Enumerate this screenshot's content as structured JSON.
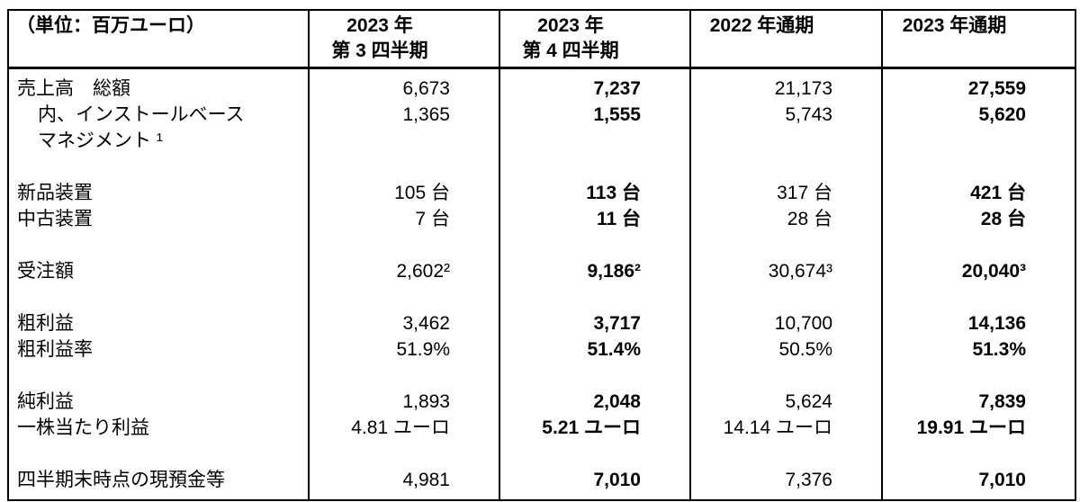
{
  "page": {
    "background_color": "#ffffff",
    "border_color": "#000000",
    "text_color": "#000000"
  },
  "table": {
    "unit_label": "（単位：百万ユーロ）",
    "columns": [
      {
        "id": "q3-2023",
        "label_line1": "2023 年",
        "label_line2": "第 3 四半期",
        "bold_values": false
      },
      {
        "id": "q4-2023",
        "label_line1": "2023 年",
        "label_line2": "第 4 四半期",
        "bold_values": true
      },
      {
        "id": "fy-2022",
        "label_line1": "2022 年通期",
        "label_line2": "",
        "bold_values": false
      },
      {
        "id": "fy-2023",
        "label_line1": "2023 年通期",
        "label_line2": "",
        "bold_values": true
      }
    ],
    "rows": [
      {
        "label": "売上高　総額",
        "indent": false,
        "spacer": false,
        "values": [
          "6,673",
          "7,237",
          "21,173",
          "27,559"
        ]
      },
      {
        "label": "内、インストールベース",
        "indent": true,
        "spacer": false,
        "values": [
          "1,365",
          "1,555",
          "5,743",
          "5,620"
        ]
      },
      {
        "label": "マネジメント ¹",
        "indent": true,
        "spacer": false,
        "values": [
          "",
          "",
          "",
          ""
        ]
      },
      {
        "label": "",
        "indent": false,
        "spacer": true,
        "values": [
          "",
          "",
          "",
          ""
        ]
      },
      {
        "label": "新品装置",
        "indent": false,
        "spacer": false,
        "values": [
          "105 台",
          "113 台",
          "317 台",
          "421 台"
        ]
      },
      {
        "label": "中古装置",
        "indent": false,
        "spacer": false,
        "values": [
          "7 台",
          "11 台",
          "28 台",
          "28 台"
        ]
      },
      {
        "label": "",
        "indent": false,
        "spacer": true,
        "values": [
          "",
          "",
          "",
          ""
        ]
      },
      {
        "label": "受注額",
        "indent": false,
        "spacer": false,
        "values": [
          "2,602²",
          "9,186²",
          "30,674³",
          "20,040³"
        ]
      },
      {
        "label": "",
        "indent": false,
        "spacer": true,
        "values": [
          "",
          "",
          "",
          ""
        ]
      },
      {
        "label": "粗利益",
        "indent": false,
        "spacer": false,
        "values": [
          "3,462",
          "3,717",
          "10,700",
          "14,136"
        ]
      },
      {
        "label": "粗利益率",
        "indent": false,
        "spacer": false,
        "values": [
          "51.9%",
          "51.4%",
          "50.5%",
          "51.3%"
        ]
      },
      {
        "label": "",
        "indent": false,
        "spacer": true,
        "values": [
          "",
          "",
          "",
          ""
        ]
      },
      {
        "label": "純利益",
        "indent": false,
        "spacer": false,
        "values": [
          "1,893",
          "2,048",
          "5,624",
          "7,839"
        ]
      },
      {
        "label": "一株当たり利益",
        "indent": false,
        "spacer": false,
        "values": [
          "4.81 ユーロ",
          "5.21 ユーロ",
          "14.14 ユーロ",
          "19.91 ユーロ"
        ]
      },
      {
        "label": "",
        "indent": false,
        "spacer": true,
        "values": [
          "",
          "",
          "",
          ""
        ]
      },
      {
        "label": "四半期末時点の現預金等",
        "indent": false,
        "spacer": false,
        "values": [
          "4,981",
          "7,010",
          "7,376",
          "7,010"
        ]
      }
    ]
  }
}
